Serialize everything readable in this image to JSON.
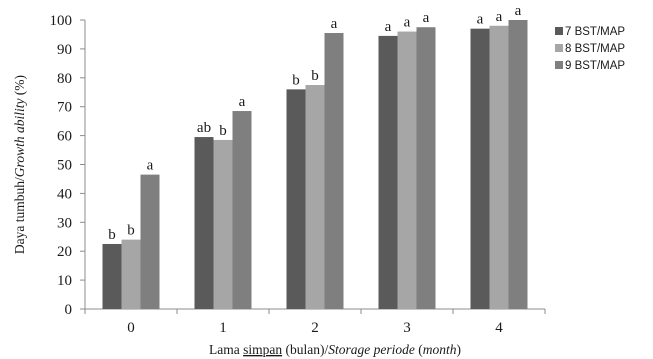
{
  "chart_data": {
    "type": "bar",
    "categories": [
      "0",
      "1",
      "2",
      "3",
      "4"
    ],
    "series": [
      {
        "name": "7 BST/MAP",
        "color": "#5a5a5a",
        "values": [
          22.5,
          59.5,
          76,
          94.5,
          97
        ],
        "labels": [
          "b",
          "ab",
          "b",
          "a",
          "a"
        ]
      },
      {
        "name": "8 BST/MAP",
        "color": "#a6a6a6",
        "values": [
          24,
          58.5,
          77.5,
          96,
          98
        ],
        "labels": [
          "b",
          "b",
          "b",
          "a",
          "a"
        ]
      },
      {
        "name": "9 BST/MAP",
        "color": "#7f7f7f",
        "values": [
          46.5,
          68.5,
          95.5,
          97.5,
          100
        ],
        "labels": [
          "a",
          "a",
          "a",
          "a",
          "a"
        ]
      }
    ],
    "yticks": [
      "0",
      "10",
      "20",
      "30",
      "40",
      "50",
      "60",
      "70",
      "80",
      "90",
      "100"
    ],
    "ylim": [
      0,
      100
    ],
    "xlabel": {
      "normal1": "Lama ",
      "underlined": "simpan",
      "normal2": " (bulan)/",
      "italic1": "Storage periode",
      "normal3": " (",
      "italic2": "month",
      "normal4": ")"
    },
    "ylabel": {
      "normal": "Daya tumbuh/",
      "italic": "Growth ability",
      "suffix": " (%)"
    },
    "grid": false,
    "legend": "right"
  }
}
